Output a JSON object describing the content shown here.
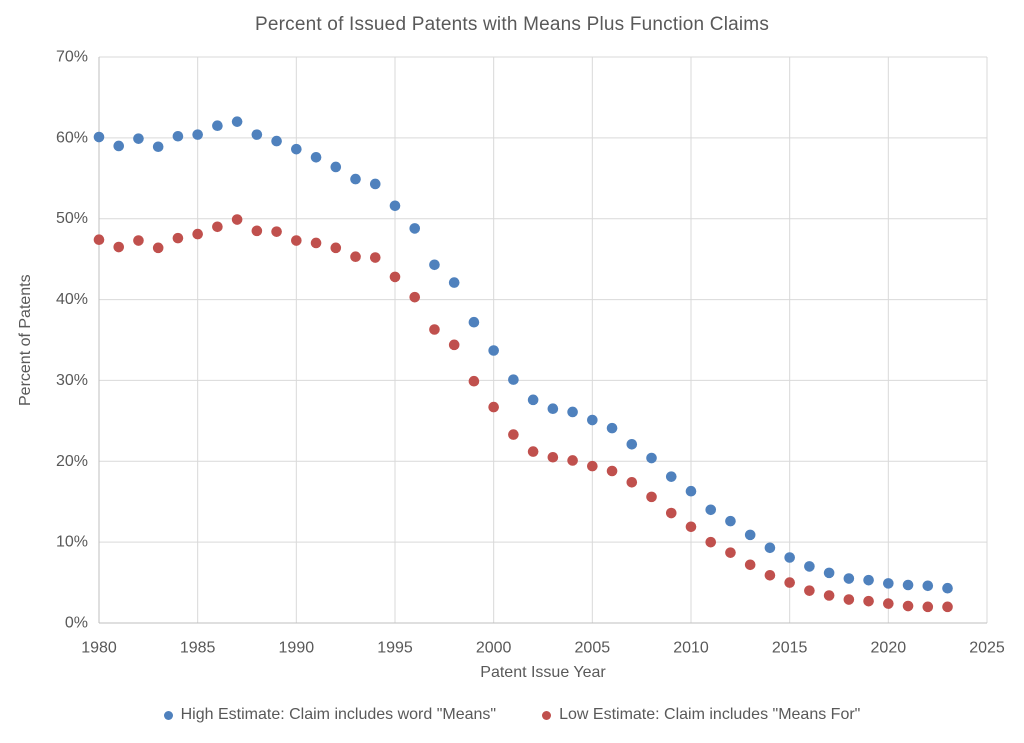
{
  "chart_data": {
    "type": "scatter",
    "title": "Percent of Issued Patents with Means Plus Function Claims",
    "xlabel": "Patent Issue Year",
    "ylabel": "Percent of Patents",
    "xlim": [
      1980,
      2025
    ],
    "ylim": [
      0,
      70
    ],
    "x_ticks": [
      1980,
      1985,
      1990,
      1995,
      2000,
      2005,
      2010,
      2015,
      2020,
      2025
    ],
    "y_ticks": [
      0,
      10,
      20,
      30,
      40,
      50,
      60,
      70
    ],
    "y_tick_suffix": "%",
    "grid": true,
    "legend_position": "bottom",
    "x": [
      1980,
      1981,
      1982,
      1983,
      1984,
      1985,
      1986,
      1987,
      1988,
      1989,
      1990,
      1991,
      1992,
      1993,
      1994,
      1995,
      1996,
      1997,
      1998,
      1999,
      2000,
      2001,
      2002,
      2003,
      2004,
      2005,
      2006,
      2007,
      2008,
      2009,
      2010,
      2011,
      2012,
      2013,
      2014,
      2015,
      2016,
      2017,
      2018,
      2019,
      2020,
      2021,
      2022,
      2023
    ],
    "series": [
      {
        "name": "High Estimate: Claim includes word \"Means\"",
        "color": "#4F81BD",
        "values": [
          60.1,
          59.0,
          59.9,
          58.9,
          60.2,
          60.4,
          61.5,
          62.0,
          60.4,
          59.6,
          58.6,
          57.6,
          56.4,
          54.9,
          54.3,
          51.6,
          48.8,
          44.3,
          42.1,
          37.2,
          33.7,
          30.1,
          27.6,
          26.5,
          26.1,
          25.1,
          24.1,
          22.1,
          20.4,
          18.1,
          16.3,
          14.0,
          12.6,
          10.9,
          9.3,
          8.1,
          7.0,
          6.2,
          5.5,
          5.3,
          4.9,
          4.7,
          4.6,
          4.3
        ]
      },
      {
        "name": "Low Estimate: Claim includes \"Means For\"",
        "color": "#C0504D",
        "values": [
          47.4,
          46.5,
          47.3,
          46.4,
          47.6,
          48.1,
          49.0,
          49.9,
          48.5,
          48.4,
          47.3,
          47.0,
          46.4,
          45.3,
          45.2,
          42.8,
          40.3,
          36.3,
          34.4,
          29.9,
          26.7,
          23.3,
          21.2,
          20.5,
          20.1,
          19.4,
          18.8,
          17.4,
          15.6,
          13.6,
          11.9,
          10.0,
          8.7,
          7.2,
          5.9,
          5.0,
          4.0,
          3.4,
          2.9,
          2.7,
          2.4,
          2.1,
          2.0,
          2.0
        ]
      }
    ]
  },
  "colors": {
    "high_series": "#4F81BD",
    "low_series": "#C0504D",
    "text": "#595959",
    "gridline": "#D9D9D9",
    "axis_line": "#BFBFBF",
    "background": "#FFFFFF"
  }
}
